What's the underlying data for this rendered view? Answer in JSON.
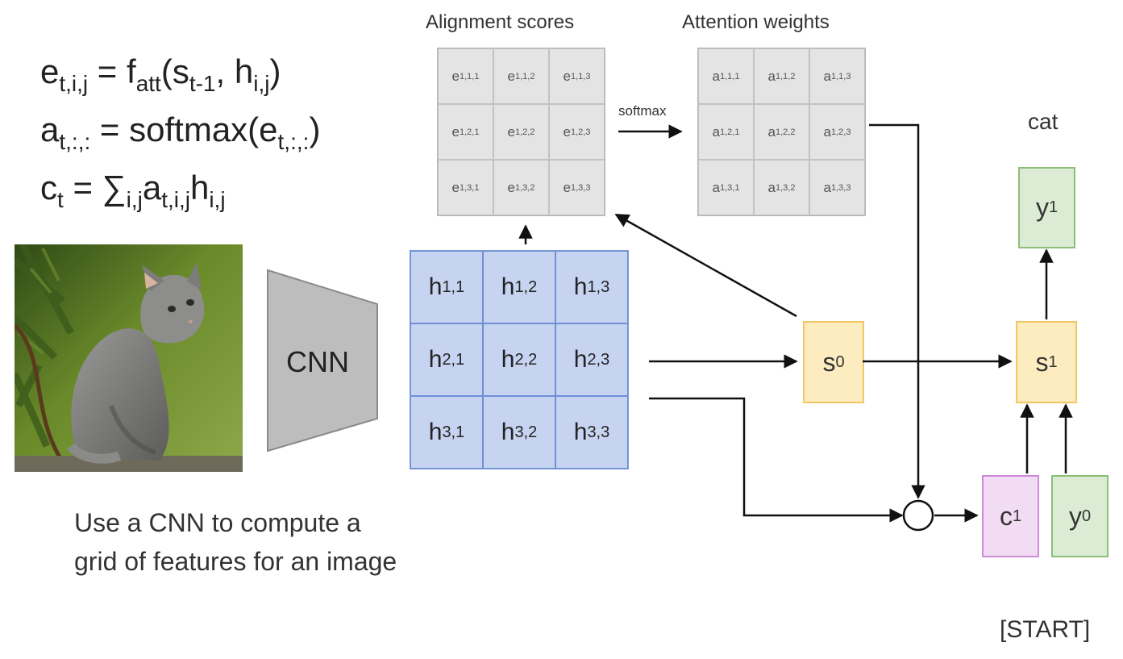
{
  "equations": {
    "line1": {
      "e": "e",
      "e_sub": "t,i,j",
      "eq": " = f",
      "f_sub": "att",
      "open": "(s",
      "s_sub": "t-1",
      "mid": ", h",
      "h_sub": "i,j",
      "close": ")"
    },
    "line2": {
      "a": "a",
      "a_sub": "t,:,:",
      "eq": " = softmax(e",
      "e_sub": "t,:,:",
      "close": ")"
    },
    "line3": {
      "c": "c",
      "c_sub": "t",
      "eq": " = ∑",
      "sum_sub": "i,j",
      "a": "a",
      "a_sub": "t,i,j",
      "h": "h",
      "h_sub": "i,j"
    }
  },
  "alignment": {
    "title": "Alignment scores",
    "symbol": "e",
    "cells": [
      [
        "1,1,1",
        "1,1,2",
        "1,1,3"
      ],
      [
        "1,2,1",
        "1,2,2",
        "1,2,3"
      ],
      [
        "1,3,1",
        "1,3,2",
        "1,3,3"
      ]
    ]
  },
  "attention": {
    "title": "Attention weights",
    "symbol": "a",
    "cells": [
      [
        "1,1,1",
        "1,1,2",
        "1,1,3"
      ],
      [
        "1,2,1",
        "1,2,2",
        "1,2,3"
      ],
      [
        "1,3,1",
        "1,3,2",
        "1,3,3"
      ]
    ]
  },
  "softmax_label": "softmax",
  "features": {
    "symbol": "h",
    "cells": [
      [
        "1,1",
        "1,2",
        "1,3"
      ],
      [
        "2,1",
        "2,2",
        "2,3"
      ],
      [
        "3,1",
        "3,2",
        "3,3"
      ]
    ]
  },
  "cnn_label": "CNN",
  "s0": {
    "symbol": "s",
    "sub": "0"
  },
  "s1": {
    "symbol": "s",
    "sub": "1"
  },
  "y1": {
    "symbol": "y",
    "sub": "1"
  },
  "c1": {
    "symbol": "c",
    "sub": "1"
  },
  "y0": {
    "symbol": "y",
    "sub": "0"
  },
  "output_word": "cat",
  "start_token": "[START]",
  "caption": {
    "line1": "Use a CNN to compute a",
    "line2": "grid of features for an image"
  },
  "colors": {
    "feature_grid": "#c6d4f1",
    "score_grid": "#e4e4e4",
    "hidden_state": "#fdecc0",
    "token_box": "#dcebd3",
    "context_box": "#f1dcf3",
    "cnn_trapezoid": "#bdbdbd"
  }
}
